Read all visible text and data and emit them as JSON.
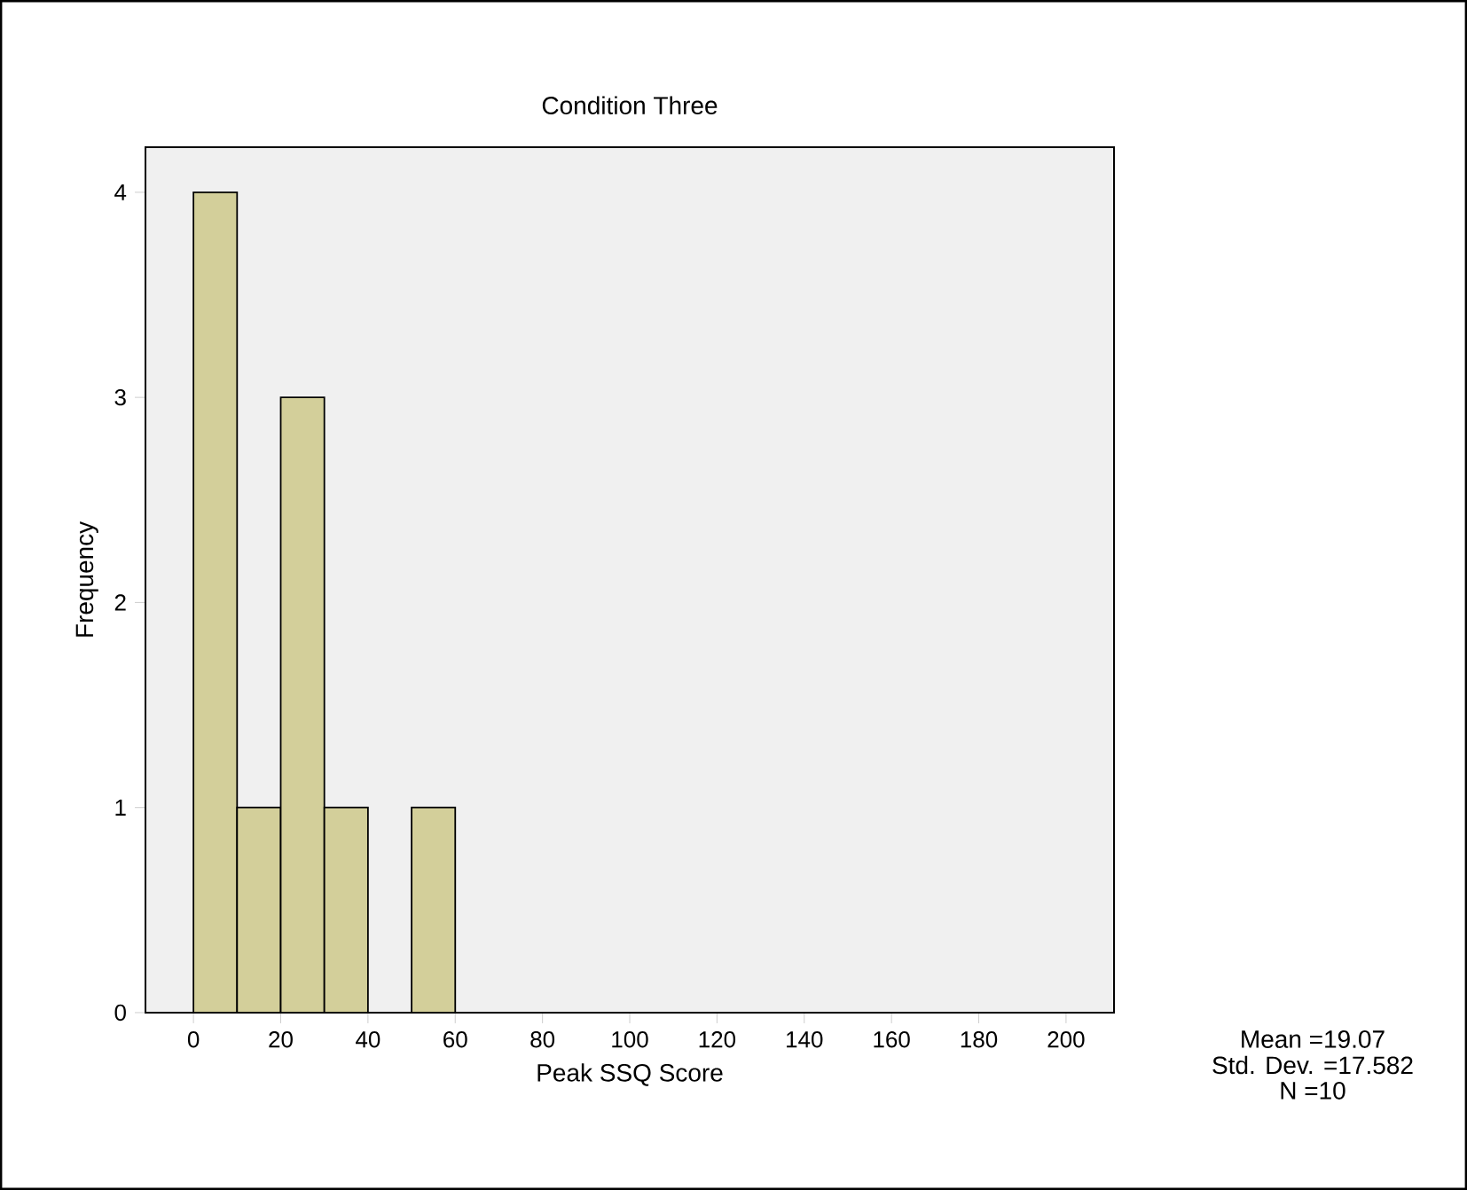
{
  "chart_data": {
    "type": "histogram",
    "title": "Condition Three",
    "xlabel": "Peak SSQ Score",
    "ylabel": "Frequency",
    "bins": [
      0,
      10,
      20,
      30,
      40,
      50,
      60
    ],
    "values": [
      4,
      1,
      3,
      1,
      0,
      1
    ],
    "color": "#d3cf9a",
    "xlim": [
      -11,
      211
    ],
    "ylim": [
      0,
      4.22
    ],
    "xticks": [
      0,
      20,
      40,
      60,
      80,
      100,
      120,
      140,
      160,
      180,
      200
    ],
    "yticks": [
      0,
      1,
      2,
      3,
      4
    ],
    "grid": false,
    "annotations": [
      "Mean =19.07",
      "Std. Dev. =17.582",
      "N =10"
    ]
  }
}
